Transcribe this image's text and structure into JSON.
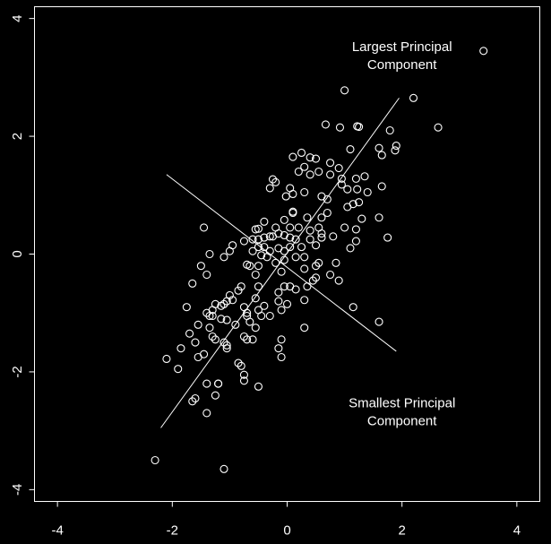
{
  "chart_data": {
    "type": "scatter",
    "title": "",
    "xlabel": "",
    "ylabel": "",
    "xlim": [
      -4.4,
      4.4
    ],
    "ylim": [
      -4.2,
      4.2
    ],
    "xticks": [
      -4,
      -2,
      0,
      2,
      4
    ],
    "yticks": [
      -4,
      -2,
      0,
      2,
      4
    ],
    "xtick_labels": [
      "-4",
      "-2",
      "0",
      "2",
      "4"
    ],
    "ytick_labels": [
      "-4",
      "-2",
      "0",
      "2",
      "4"
    ],
    "grid": false,
    "background": "#000000",
    "foreground": "#ffffff",
    "marker": "open-circle",
    "annotations": [
      {
        "lines": [
          "Largest Principal",
          "Component"
        ],
        "x": 2.0,
        "y": 3.45
      },
      {
        "lines": [
          "Smallest Principal",
          "Component"
        ],
        "x": 2.0,
        "y": -2.6
      }
    ],
    "lines": [
      {
        "name": "largest-principal-component",
        "x": [
          -2.2,
          1.95
        ],
        "y": [
          -2.95,
          2.65
        ]
      },
      {
        "name": "smallest-principal-component",
        "x": [
          -2.1,
          1.9
        ],
        "y": [
          1.35,
          -1.65
        ]
      }
    ],
    "points": [
      [
        3.42,
        3.45
      ],
      [
        1.0,
        2.78
      ],
      [
        2.2,
        2.65
      ],
      [
        2.63,
        2.15
      ],
      [
        0.67,
        2.2
      ],
      [
        0.92,
        2.15
      ],
      [
        1.22,
        2.17
      ],
      [
        1.25,
        2.16
      ],
      [
        1.79,
        2.1
      ],
      [
        1.9,
        1.84
      ],
      [
        1.88,
        1.76
      ],
      [
        1.6,
        1.8
      ],
      [
        1.65,
        1.68
      ],
      [
        1.1,
        1.78
      ],
      [
        0.25,
        1.72
      ],
      [
        0.4,
        1.64
      ],
      [
        0.5,
        1.62
      ],
      [
        0.1,
        1.65
      ],
      [
        0.3,
        1.48
      ],
      [
        0.75,
        1.55
      ],
      [
        0.9,
        1.46
      ],
      [
        0.55,
        1.4
      ],
      [
        0.4,
        1.35
      ],
      [
        0.2,
        1.4
      ],
      [
        0.75,
        1.35
      ],
      [
        0.95,
        1.28
      ],
      [
        1.2,
        1.28
      ],
      [
        1.35,
        1.32
      ],
      [
        1.65,
        1.15
      ],
      [
        0.95,
        1.18
      ],
      [
        1.05,
        1.1
      ],
      [
        1.4,
        1.05
      ],
      [
        1.22,
        1.1
      ],
      [
        -0.2,
        1.22
      ],
      [
        -0.25,
        1.27
      ],
      [
        -0.3,
        1.12
      ],
      [
        0.05,
        1.12
      ],
      [
        0.1,
        1.02
      ],
      [
        -0.02,
        0.98
      ],
      [
        0.3,
        1.05
      ],
      [
        0.6,
        0.98
      ],
      [
        0.7,
        0.93
      ],
      [
        1.05,
        0.8
      ],
      [
        1.15,
        0.85
      ],
      [
        1.25,
        0.88
      ],
      [
        0.1,
        0.72
      ],
      [
        0.1,
        0.7
      ],
      [
        0.35,
        0.62
      ],
      [
        0.6,
        0.62
      ],
      [
        0.7,
        0.7
      ],
      [
        1.3,
        0.6
      ],
      [
        1.6,
        0.62
      ],
      [
        1.0,
        0.45
      ],
      [
        1.2,
        0.42
      ],
      [
        1.75,
        0.28
      ],
      [
        -0.05,
        0.58
      ],
      [
        -0.2,
        0.45
      ],
      [
        0.05,
        0.45
      ],
      [
        0.2,
        0.45
      ],
      [
        0.4,
        0.4
      ],
      [
        0.55,
        0.45
      ],
      [
        0.6,
        0.35
      ],
      [
        0.6,
        0.28
      ],
      [
        0.4,
        0.25
      ],
      [
        0.8,
        0.3
      ],
      [
        1.2,
        0.22
      ],
      [
        -0.4,
        0.55
      ],
      [
        -0.5,
        0.43
      ],
      [
        -0.55,
        0.42
      ],
      [
        -0.15,
        0.35
      ],
      [
        -0.05,
        0.32
      ],
      [
        0.05,
        0.28
      ],
      [
        0.15,
        0.25
      ],
      [
        -0.4,
        0.28
      ],
      [
        -0.3,
        0.3
      ],
      [
        -0.25,
        0.3
      ],
      [
        -0.5,
        0.25
      ],
      [
        -0.6,
        0.25
      ],
      [
        -0.75,
        0.22
      ],
      [
        -0.95,
        0.15
      ],
      [
        -1.0,
        0.05
      ],
      [
        -1.45,
        0.45
      ],
      [
        -1.35,
        0.0
      ],
      [
        -0.4,
        0.12
      ],
      [
        -0.5,
        0.12
      ],
      [
        -0.3,
        0.05
      ],
      [
        -0.15,
        0.1
      ],
      [
        -0.05,
        0.05
      ],
      [
        0.05,
        0.12
      ],
      [
        0.25,
        0.12
      ],
      [
        0.5,
        0.15
      ],
      [
        1.1,
        0.1
      ],
      [
        0.3,
        -0.05
      ],
      [
        0.15,
        -0.05
      ],
      [
        -0.05,
        -0.1
      ],
      [
        -0.2,
        -0.15
      ],
      [
        -0.35,
        -0.05
      ],
      [
        -0.45,
        -0.02
      ],
      [
        -0.6,
        0.05
      ],
      [
        -0.5,
        -0.2
      ],
      [
        -0.65,
        -0.2
      ],
      [
        -0.7,
        -0.18
      ],
      [
        -0.55,
        -0.35
      ],
      [
        -1.1,
        -0.05
      ],
      [
        -1.5,
        -0.2
      ],
      [
        -1.65,
        -0.5
      ],
      [
        -1.4,
        -0.35
      ],
      [
        -0.1,
        -0.3
      ],
      [
        0.3,
        -0.25
      ],
      [
        0.5,
        -0.2
      ],
      [
        0.55,
        -0.15
      ],
      [
        0.85,
        -0.15
      ],
      [
        0.75,
        -0.35
      ],
      [
        0.5,
        -0.4
      ],
      [
        0.45,
        -0.45
      ],
      [
        0.9,
        -0.45
      ],
      [
        0.35,
        -0.55
      ],
      [
        0.15,
        -0.6
      ],
      [
        0.05,
        -0.55
      ],
      [
        -0.05,
        -0.55
      ],
      [
        -0.15,
        -0.65
      ],
      [
        -0.5,
        -0.55
      ],
      [
        -0.55,
        -0.75
      ],
      [
        -0.8,
        -0.55
      ],
      [
        -0.85,
        -0.62
      ],
      [
        -1.0,
        -0.7
      ],
      [
        -0.95,
        -0.78
      ],
      [
        -1.05,
        -0.8
      ],
      [
        -1.1,
        -0.85
      ],
      [
        -1.15,
        -0.88
      ],
      [
        -1.25,
        -0.85
      ],
      [
        -1.3,
        -0.95
      ],
      [
        -1.4,
        -1.0
      ],
      [
        -1.35,
        -1.05
      ],
      [
        -1.3,
        -1.05
      ],
      [
        -1.15,
        -1.1
      ],
      [
        -1.05,
        -1.12
      ],
      [
        -0.75,
        -0.9
      ],
      [
        -0.7,
        -1.0
      ],
      [
        -0.5,
        -0.95
      ],
      [
        -0.4,
        -0.88
      ],
      [
        -0.15,
        -0.8
      ],
      [
        0.0,
        -0.85
      ],
      [
        0.3,
        -0.78
      ],
      [
        1.15,
        -0.9
      ],
      [
        -1.75,
        -0.9
      ],
      [
        -1.35,
        -1.25
      ],
      [
        -1.3,
        -1.4
      ],
      [
        -1.25,
        -1.45
      ],
      [
        -0.9,
        -1.2
      ],
      [
        -0.7,
        -1.05
      ],
      [
        -0.65,
        -1.15
      ],
      [
        -0.55,
        -1.25
      ],
      [
        -0.45,
        -1.05
      ],
      [
        -0.3,
        -1.05
      ],
      [
        -0.1,
        -0.95
      ],
      [
        0.3,
        -1.25
      ],
      [
        1.6,
        -1.15
      ],
      [
        -1.55,
        -1.2
      ],
      [
        -1.7,
        -1.35
      ],
      [
        -1.6,
        -1.5
      ],
      [
        -1.1,
        -1.5
      ],
      [
        -1.05,
        -1.55
      ],
      [
        -1.05,
        -1.6
      ],
      [
        -0.75,
        -1.4
      ],
      [
        -0.7,
        -1.45
      ],
      [
        -0.6,
        -1.45
      ],
      [
        -0.1,
        -1.45
      ],
      [
        -0.15,
        -1.6
      ],
      [
        -0.1,
        -1.75
      ],
      [
        -1.45,
        -1.7
      ],
      [
        -1.55,
        -1.75
      ],
      [
        -1.85,
        -1.6
      ],
      [
        -1.9,
        -1.95
      ],
      [
        -2.1,
        -1.78
      ],
      [
        -0.85,
        -1.85
      ],
      [
        -0.8,
        -1.9
      ],
      [
        -0.75,
        -2.05
      ],
      [
        -0.75,
        -2.15
      ],
      [
        -1.2,
        -2.2
      ],
      [
        -1.2,
        -2.2
      ],
      [
        -1.4,
        -2.2
      ],
      [
        -1.25,
        -2.4
      ],
      [
        -0.5,
        -2.25
      ],
      [
        -1.6,
        -2.45
      ],
      [
        -1.65,
        -2.5
      ],
      [
        -1.4,
        -2.7
      ],
      [
        -2.3,
        -3.5
      ],
      [
        -1.1,
        -3.65
      ]
    ]
  }
}
